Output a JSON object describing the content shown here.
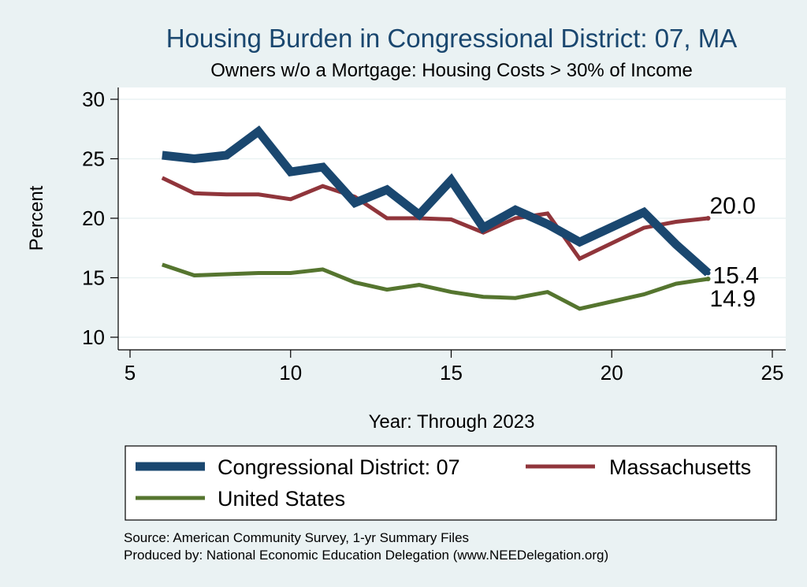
{
  "chart_data": {
    "type": "line",
    "title": "Housing Burden in Congressional District:  07, MA",
    "subtitle": "Owners w/o a Mortgage: Housing Costs > 30% of Income",
    "xlabel": "Year: Through 2023",
    "ylabel": "Percent",
    "xlim": [
      5,
      25
    ],
    "ylim": [
      10,
      30
    ],
    "xticks": [
      5,
      10,
      15,
      20,
      25
    ],
    "yticks": [
      10,
      15,
      20,
      25,
      30
    ],
    "grid": true,
    "legend_position": "bottom",
    "x": [
      6,
      7,
      8,
      9,
      10,
      11,
      12,
      13,
      14,
      15,
      16,
      17,
      18,
      19,
      21,
      22,
      23
    ],
    "series": [
      {
        "name": "Congressional District:  07",
        "color": "#1a476f",
        "values": [
          25.3,
          25.0,
          25.3,
          27.3,
          23.9,
          24.3,
          21.3,
          22.4,
          20.3,
          23.2,
          19.2,
          20.7,
          19.5,
          18.0,
          20.5,
          17.8,
          15.4
        ],
        "end_label": "15.4"
      },
      {
        "name": "Massachusetts",
        "color": "#90353b",
        "values": [
          23.4,
          22.1,
          22.0,
          22.0,
          21.6,
          22.7,
          21.8,
          20.0,
          20.0,
          19.9,
          18.8,
          20.0,
          20.4,
          16.6,
          19.2,
          19.7,
          20.0
        ],
        "end_label": "20.0"
      },
      {
        "name": "United States",
        "color": "#55752f",
        "values": [
          16.1,
          15.2,
          15.3,
          15.4,
          15.4,
          15.7,
          14.6,
          14.0,
          14.4,
          13.8,
          13.4,
          13.3,
          13.8,
          12.4,
          13.6,
          14.5,
          14.9
        ],
        "end_label": "14.9"
      }
    ]
  },
  "footer": {
    "source": "Source: American Community Survey, 1-yr Summary Files",
    "produced": "Produced by: National Economic Education Delegation (www.NEEDelegation.org)"
  }
}
